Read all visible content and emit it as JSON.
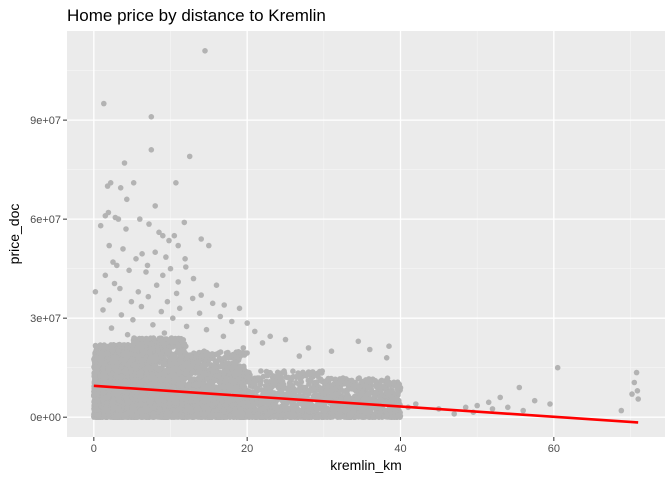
{
  "chart_data": {
    "type": "scatter",
    "title": "Home price by distance to Kremlin",
    "xlabel": "kremlin_km",
    "ylabel": "price_doc",
    "xlim": [
      -3.5,
      74.5
    ],
    "ylim": [
      -6000000,
      117000000
    ],
    "x_ticks": [
      0,
      20,
      40,
      60
    ],
    "x_tick_labels": [
      "0",
      "20",
      "40",
      "60"
    ],
    "y_ticks": [
      0,
      30000000,
      60000000,
      90000000
    ],
    "y_tick_labels": [
      "0e+00",
      "3e+07",
      "6e+07",
      "9e+07"
    ],
    "grid": true,
    "legend": "none",
    "point_color": "#b3b3b3",
    "trend_line": {
      "type": "linear",
      "color": "#ff0000",
      "points": [
        [
          0,
          9500000
        ],
        [
          71,
          -1600000
        ]
      ]
    },
    "points": [
      [
        14.5,
        111000000
      ],
      [
        1.3,
        95000000
      ],
      [
        7.5,
        91000000
      ],
      [
        7.5,
        81000000
      ],
      [
        12.5,
        79000000
      ],
      [
        4,
        77000000
      ],
      [
        10.7,
        71000000
      ],
      [
        5.2,
        71000000
      ],
      [
        2.2,
        71000000
      ],
      [
        1.8,
        70000000
      ],
      [
        3.5,
        69500000
      ],
      [
        4.3,
        66000000
      ],
      [
        8,
        64000000
      ],
      [
        1.9,
        62000000
      ],
      [
        1.5,
        61000000
      ],
      [
        2.8,
        60500000
      ],
      [
        3.2,
        60000000
      ],
      [
        6,
        60000000
      ],
      [
        11.8,
        59000000
      ],
      [
        7.2,
        58500000
      ],
      [
        0.9,
        58000000
      ],
      [
        4.2,
        57000000
      ],
      [
        8.5,
        56000000
      ],
      [
        10.5,
        55000000
      ],
      [
        9,
        55000000
      ],
      [
        14,
        54000000
      ],
      [
        9.8,
        53500000
      ],
      [
        11,
        52000000
      ],
      [
        15,
        52000000
      ],
      [
        2,
        52000000
      ],
      [
        3.8,
        51000000
      ],
      [
        8,
        50000000
      ],
      [
        6.3,
        49500000
      ],
      [
        9.4,
        48500000
      ],
      [
        11.9,
        48000000
      ],
      [
        5.5,
        48000000
      ],
      [
        2.5,
        47000000
      ],
      [
        3,
        46000000
      ],
      [
        7,
        46000000
      ],
      [
        12,
        45500000
      ],
      [
        10,
        45000000
      ],
      [
        4.6,
        44500000
      ],
      [
        6.8,
        44000000
      ],
      [
        9,
        43000000
      ],
      [
        1.5,
        43000000
      ],
      [
        13,
        42000000
      ],
      [
        11,
        41000000
      ],
      [
        2.7,
        40500000
      ],
      [
        8.2,
        40000000
      ],
      [
        16,
        40000000
      ],
      [
        3.4,
        39000000
      ],
      [
        5.8,
        38000000
      ],
      [
        10.8,
        37500000
      ],
      [
        0.2,
        38000000
      ],
      [
        14,
        37000000
      ],
      [
        7.1,
        36500000
      ],
      [
        12.9,
        36000000
      ],
      [
        2,
        35500000
      ],
      [
        9.6,
        35000000
      ],
      [
        4.9,
        35000000
      ],
      [
        15.5,
        34500000
      ],
      [
        17,
        34000000
      ],
      [
        6.2,
        33500000
      ],
      [
        11.2,
        33000000
      ],
      [
        19,
        33000000
      ],
      [
        1.2,
        32500000
      ],
      [
        8.8,
        32000000
      ],
      [
        13.8,
        31500000
      ],
      [
        3.6,
        31000000
      ],
      [
        16.5,
        30500000
      ],
      [
        10.3,
        30000000
      ],
      [
        5.1,
        29500000
      ],
      [
        18,
        29000000
      ],
      [
        20,
        28500000
      ],
      [
        7.7,
        28000000
      ],
      [
        12.1,
        27500000
      ],
      [
        2.3,
        27000000
      ],
      [
        14.7,
        26500000
      ],
      [
        21,
        26000000
      ],
      [
        9.2,
        25500000
      ],
      [
        4.4,
        25000000
      ],
      [
        16.9,
        24500000
      ],
      [
        23,
        24500000
      ],
      [
        25,
        23500000
      ],
      [
        22,
        22500000
      ],
      [
        34.5,
        23000000
      ],
      [
        28,
        21000000
      ],
      [
        19.5,
        21000000
      ],
      [
        31,
        20000000
      ],
      [
        36,
        20500000
      ],
      [
        38.2,
        18000000
      ],
      [
        26.8,
        18500000
      ],
      [
        38.5,
        21500000
      ],
      [
        60.5,
        15000000
      ],
      [
        70.8,
        13500000
      ],
      [
        70.5,
        10500000
      ],
      [
        70.9,
        8000000
      ],
      [
        70.2,
        7000000
      ],
      [
        71,
        5500000
      ],
      [
        55.5,
        9000000
      ],
      [
        53,
        6000000
      ],
      [
        57.5,
        5000000
      ],
      [
        59.5,
        4000000
      ],
      [
        51.5,
        4500000
      ],
      [
        50,
        3500000
      ],
      [
        48.5,
        3000000
      ],
      [
        52,
        2500000
      ],
      [
        54,
        3000000
      ],
      [
        56,
        2000000
      ],
      [
        49.5,
        1500000
      ],
      [
        68.8,
        2000000
      ],
      [
        45,
        2500000
      ],
      [
        42,
        4000000
      ],
      [
        41,
        3000000
      ],
      [
        47,
        1000000
      ]
    ],
    "clusters": [
      {
        "x": [
          0,
          5
        ],
        "y": [
          0,
          22000000
        ],
        "n": 1300,
        "shape": 1.6
      },
      {
        "x": [
          5,
          12
        ],
        "y": [
          0,
          24000000
        ],
        "n": 1500,
        "shape": 1.7
      },
      {
        "x": [
          12,
          20
        ],
        "y": [
          0,
          20000000
        ],
        "n": 1100,
        "shape": 1.9
      },
      {
        "x": [
          20,
          30
        ],
        "y": [
          0,
          14000000
        ],
        "n": 650,
        "shape": 2.2
      },
      {
        "x": [
          30,
          40
        ],
        "y": [
          0,
          12000000
        ],
        "n": 650,
        "shape": 1.9
      },
      {
        "x": [
          0,
          0.6
        ],
        "y": [
          2000000,
          19000000
        ],
        "n": 120,
        "shape": 1.3
      }
    ]
  }
}
